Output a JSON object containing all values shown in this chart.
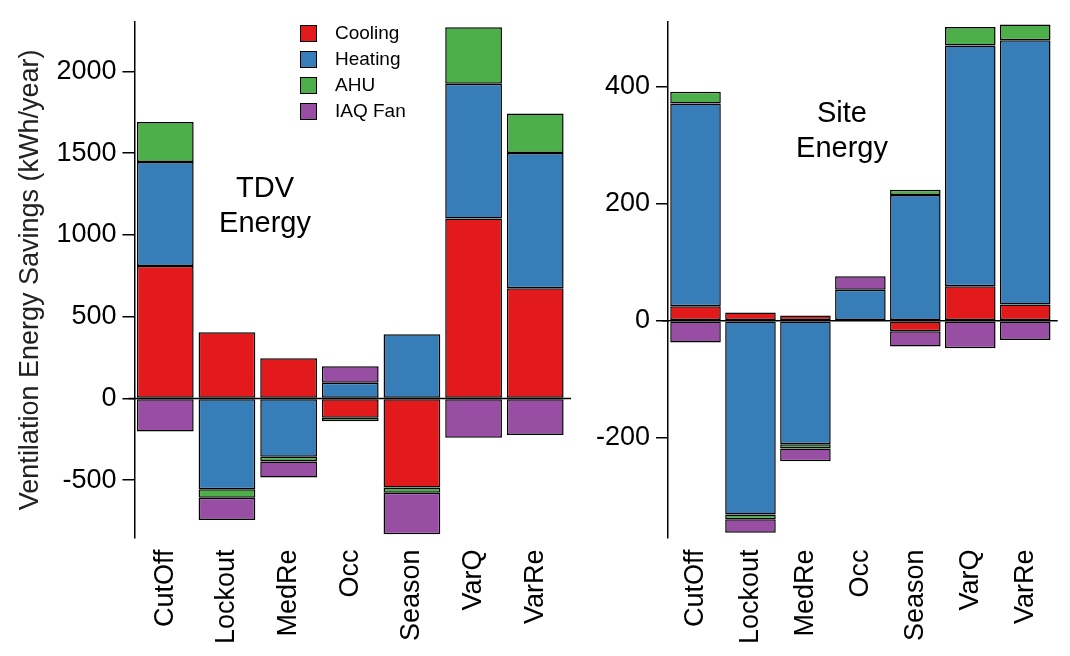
{
  "chart_data": [
    {
      "type": "bar",
      "stacked": true,
      "ylabel": "Ventilation Energy Savings (kWh/year)",
      "annotations": [
        "TDV\nEnergy"
      ],
      "categories": [
        "CutOff",
        "Lockout",
        "MedRe",
        "Occ",
        "Season",
        "VarQ",
        "VarRe"
      ],
      "series": [
        {
          "name": "Cooling",
          "color": "#e31a1c",
          "values": [
            810,
            405,
            246,
            -119,
            -544,
            1100,
            673
          ]
        },
        {
          "name": "Heating",
          "color": "#377eb8",
          "values": [
            635,
            -555,
            -356,
            96,
            392,
            823,
            827
          ]
        },
        {
          "name": "AHU",
          "color": "#4daf4a",
          "values": [
            245,
            -53,
            -30,
            -20,
            -33,
            346,
            242
          ]
        },
        {
          "name": "IAQ Fan",
          "color": "#984ea3",
          "values": [
            -202,
            -135,
            -98,
            100,
            -254,
            -240,
            -223
          ]
        }
      ],
      "ylim": [
        -850,
        2300
      ],
      "yticks": [
        -500,
        0,
        500,
        1000,
        1500,
        2000
      ],
      "grid": false,
      "legend": "top",
      "ref_lines": [
        {
          "axis": "y",
          "value": 0
        }
      ]
    },
    {
      "type": "bar",
      "stacked": true,
      "annotations": [
        "Site\nEnergy"
      ],
      "categories": [
        "CutOff",
        "Lockout",
        "MedRe",
        "Occ",
        "Season",
        "VarQ",
        "VarRe"
      ],
      "series": [
        {
          "color": "#e31a1c",
          "values": [
            25,
            14,
            9,
            null,
            -18,
            59,
            28
          ]
        },
        {
          "color": "#377eb8",
          "values": [
            346,
            -331,
            -211,
            53,
            215,
            411,
            451
          ]
        },
        {
          "color": "#4daf4a",
          "values": [
            20,
            -8,
            -7,
            null,
            9,
            32,
            27
          ]
        },
        {
          "color": "#984ea3",
          "values": [
            -37,
            -23,
            -22,
            23,
            -26,
            -47,
            -33
          ]
        }
      ],
      "ylim": [
        -370,
        510
      ],
      "yticks": [
        -200,
        0,
        200,
        400
      ],
      "grid": false,
      "legend": false,
      "ref_lines": [
        {
          "axis": "y",
          "value": 0
        }
      ]
    }
  ]
}
